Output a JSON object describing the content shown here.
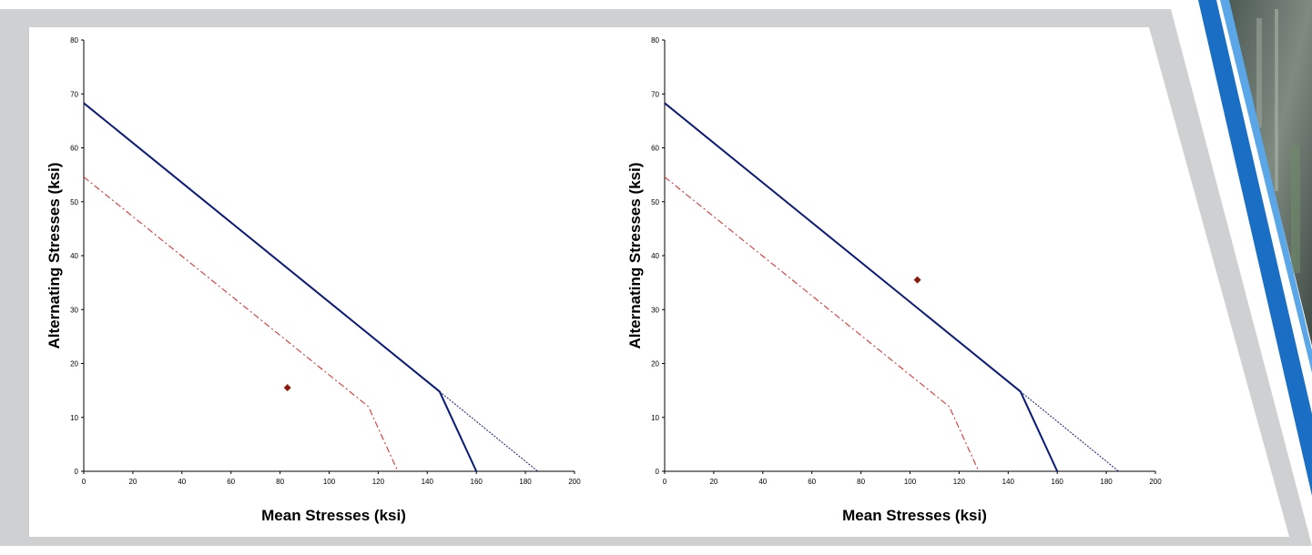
{
  "colors": {
    "frame": "#cfd0d2",
    "panel": "#ffffff",
    "goodman_line": "#0a1a7a",
    "safety_line": "#e02020",
    "point": "#8b1a0a",
    "accent_blue": "#1a6fc4",
    "accent_light": "#5aa6e6"
  },
  "chart_data": [
    {
      "type": "scatter",
      "xlabel": "Mean  Stresses (ksi)",
      "ylabel": "Alternating Stresses (ksi)",
      "xlim": [
        0,
        200
      ],
      "ylim": [
        0,
        80
      ],
      "xticks": [
        "0",
        "20",
        "40",
        "60",
        "80",
        "100",
        "120",
        "140",
        "160",
        "180",
        "200"
      ],
      "yticks": [
        "0",
        "10",
        "20",
        "30",
        "40",
        "50",
        "60",
        "70",
        "80"
      ],
      "grid": false,
      "series": [
        {
          "style": "solid",
          "color": "#0a1a7a",
          "x": [
            0,
            145,
            160
          ],
          "y": [
            68.3,
            14.8,
            0
          ]
        },
        {
          "style": "dotted",
          "color": "#0a1a7a",
          "x": [
            145,
            185
          ],
          "y": [
            14.8,
            0
          ]
        },
        {
          "style": "dashdot",
          "color": "#e02020",
          "x": [
            0,
            116,
            128
          ],
          "y": [
            54.6,
            12,
            0
          ]
        },
        {
          "style": "marker",
          "color": "#8b1a0a",
          "x": [
            83
          ],
          "y": [
            15.5
          ]
        }
      ]
    },
    {
      "type": "scatter",
      "xlabel": "Mean  Stresses (ksi)",
      "ylabel": "Alternating Stresses (ksi)",
      "xlim": [
        0,
        200
      ],
      "ylim": [
        0,
        80
      ],
      "xticks": [
        "0",
        "20",
        "40",
        "60",
        "80",
        "100",
        "120",
        "140",
        "160",
        "180",
        "200"
      ],
      "yticks": [
        "0",
        "10",
        "20",
        "30",
        "40",
        "50",
        "60",
        "70",
        "80"
      ],
      "grid": false,
      "series": [
        {
          "style": "solid",
          "color": "#0a1a7a",
          "x": [
            0,
            145,
            160
          ],
          "y": [
            68.3,
            14.8,
            0
          ]
        },
        {
          "style": "dotted",
          "color": "#0a1a7a",
          "x": [
            145,
            185
          ],
          "y": [
            14.8,
            0
          ]
        },
        {
          "style": "dashdot",
          "color": "#e02020",
          "x": [
            0,
            116,
            128
          ],
          "y": [
            54.6,
            12,
            0
          ]
        },
        {
          "style": "marker",
          "color": "#8b1a0a",
          "x": [
            103
          ],
          "y": [
            35.5
          ]
        }
      ]
    }
  ]
}
